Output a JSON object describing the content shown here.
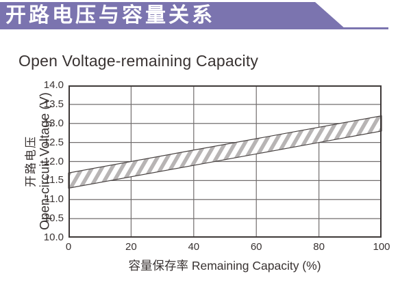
{
  "banner": {
    "title": "开路电压与容量关系",
    "background": "#7b74af",
    "text_color": "#ffffff"
  },
  "chart_data": {
    "type": "area",
    "title": "Open Voltage-remaining Capacity",
    "xlabel": "容量保存率 Remaining Capacity (%)",
    "ylabel_cn": "开路电压",
    "ylabel_en": "Open-circuit Voltage (V)",
    "xlim": [
      0,
      100
    ],
    "ylim": [
      10.0,
      14.0
    ],
    "x_ticks": [
      0,
      20,
      40,
      60,
      80,
      100
    ],
    "y_ticks": [
      14.0,
      13.5,
      13.0,
      12.5,
      12.0,
      11.5,
      11.0,
      10.5,
      10.0
    ],
    "grid": true,
    "legend": "none",
    "band": {
      "description": "hatched band of open-circuit voltage versus remaining capacity",
      "x": [
        0,
        100
      ],
      "upper": [
        11.7,
        13.2
      ],
      "lower": [
        11.3,
        12.8
      ]
    },
    "colors": {
      "grid": "#716d6d",
      "border": "#3d3837",
      "band_outline": "#474140",
      "band_fill": "#ffffff",
      "hatch_stripe": "#b7b4b4",
      "text": "#383231"
    }
  }
}
